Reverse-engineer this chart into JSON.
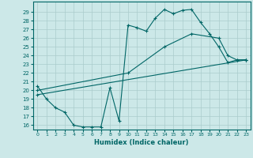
{
  "title": "",
  "xlabel": "Humidex (Indice chaleur)",
  "xlim": [
    -0.5,
    23.5
  ],
  "ylim": [
    15.5,
    30.2
  ],
  "yticks": [
    16,
    17,
    18,
    19,
    20,
    21,
    22,
    23,
    24,
    25,
    26,
    27,
    28,
    29
  ],
  "xticks": [
    0,
    1,
    2,
    3,
    4,
    5,
    6,
    7,
    8,
    9,
    10,
    11,
    12,
    13,
    14,
    15,
    16,
    17,
    18,
    19,
    20,
    21,
    22,
    23
  ],
  "bg_color": "#cce8e8",
  "grid_color": "#aacccc",
  "line_color": "#006666",
  "line1_x": [
    0,
    1,
    2,
    3,
    4,
    5,
    6,
    7,
    8,
    9,
    10,
    11,
    12,
    13,
    14,
    15,
    16,
    17,
    18,
    19,
    20,
    21,
    22,
    23
  ],
  "line1_y": [
    20.5,
    19,
    18,
    17.5,
    16,
    15.8,
    15.8,
    15.8,
    20.3,
    16.5,
    27.5,
    27.2,
    26.8,
    28.3,
    29.3,
    28.8,
    29.2,
    29.3,
    27.8,
    26.5,
    25,
    23.2,
    23.5,
    23.5
  ],
  "line2_x": [
    0,
    23
  ],
  "line2_y": [
    19.5,
    23.5
  ],
  "line3_x": [
    0,
    10,
    14,
    17,
    20,
    21,
    22,
    23
  ],
  "line3_y": [
    20,
    22,
    25,
    26.5,
    26,
    24,
    23.5,
    23.5
  ]
}
